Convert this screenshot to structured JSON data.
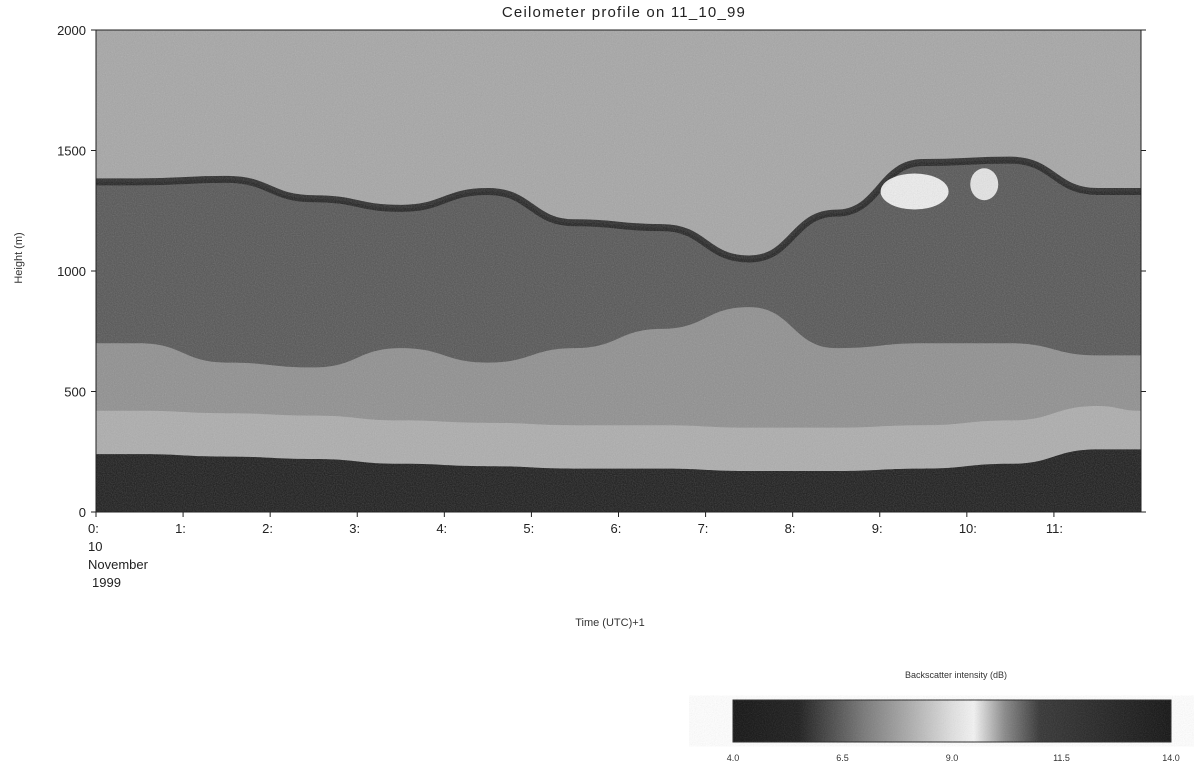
{
  "chart_data": {
    "type": "heatmap",
    "title": "Ceilometer profile on 11_10_99",
    "xlabel": "Time (UTC)+1",
    "ylabel": "Height (m)",
    "x_ticks": [
      "0:",
      "1:",
      "2:",
      "3:",
      "4:",
      "5:",
      "6:",
      "7:",
      "8:",
      "9:",
      "10:",
      "11:"
    ],
    "x_date": [
      "10",
      "November",
      "1999"
    ],
    "xlim": [
      0,
      12
    ],
    "y_ticks": [
      0,
      500,
      1000,
      1500,
      2000
    ],
    "ylim": [
      0,
      2000
    ],
    "colorbar": {
      "label": "Backscatter intensity (dB)",
      "ticks": [
        "4.0",
        "6.5",
        "9.0",
        "11.5",
        "14.0"
      ],
      "range": [
        4.0,
        14.0
      ]
    },
    "layers": {
      "surface_dark_layer_top_m": [
        240,
        230,
        220,
        200,
        190,
        180,
        180,
        170,
        170,
        180,
        200,
        260
      ],
      "cloud_top_m": [
        1370,
        1380,
        1300,
        1260,
        1330,
        1200,
        1180,
        1050,
        1240,
        1450,
        1460,
        1330
      ],
      "cloud_base_m": [
        700,
        620,
        600,
        680,
        620,
        680,
        760,
        850,
        680,
        700,
        700,
        650
      ]
    }
  }
}
